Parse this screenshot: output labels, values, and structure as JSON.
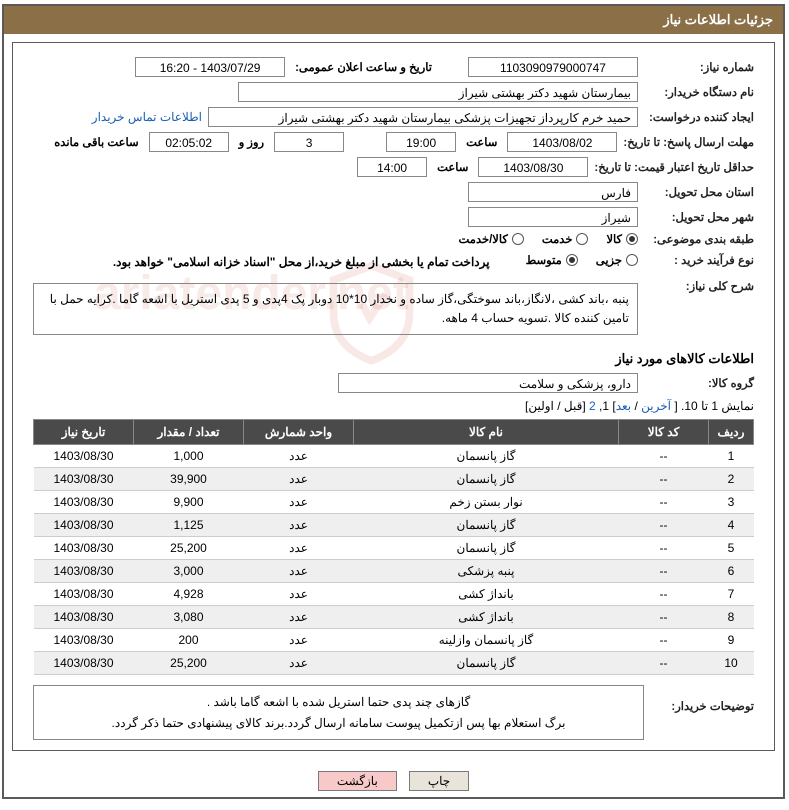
{
  "header": {
    "title": "جزئیات اطلاعات نیاز"
  },
  "form": {
    "need_number_label": "شماره نیاز:",
    "need_number": "1103090979000747",
    "announce_label": "تاریخ و ساعت اعلان عمومی:",
    "announce_value": "1403/07/29 - 16:20",
    "buyer_org_label": "نام دستگاه خریدار:",
    "buyer_org": "بیمارستان شهید دکتر بهشتی شیراز",
    "requester_label": "ایجاد کننده درخواست:",
    "requester": "حمید خرم کارپرداز تجهیزات پزشکی بیمارستان شهید دکتر بهشتی شیراز",
    "buyer_contact_link": "اطلاعات تماس خریدار",
    "deadline_send_label": "مهلت ارسال پاسخ: تا تاریخ:",
    "deadline_send_date": "1403/08/02",
    "hour_label": "ساعت",
    "deadline_send_hour": "19:00",
    "days": "3",
    "days_label": "روز و",
    "remain_time": "02:05:02",
    "remain_label": "ساعت باقی مانده",
    "price_validity_label": "حداقل تاریخ اعتبار قیمت: تا تاریخ:",
    "price_validity_date": "1403/08/30",
    "price_validity_hour": "14:00",
    "province_label": "استان محل تحویل:",
    "province": "فارس",
    "city_label": "شهر محل تحویل:",
    "city": "شیراز",
    "category_label": "طبقه بندی موضوعی:",
    "cat_goods": "کالا",
    "cat_service": "خدمت",
    "cat_both": "کالا/خدمت",
    "purchase_type_label": "نوع فرآیند خرید :",
    "pt_minor": "جزیی",
    "pt_medium": "متوسط",
    "payment_note": "پرداخت تمام یا بخشی از مبلغ خرید،از محل \"اسناد خزانه اسلامی\" خواهد بود.",
    "overall_desc_label": "شرح کلی نیاز:",
    "overall_desc": "پنبه ،باند کشی ،لانگاز،باند سوختگی،گاز ساده و نخدار 10*10 دوبار پک 4پدی و 5 پدی استریل با اشعه گاما .کرایه حمل با تامین کننده کالا .تسویه حساب 4 ماهه.",
    "items_title": "اطلاعات کالاهای مورد نیاز",
    "goods_group_label": "گروه کالا:",
    "goods_group": "دارو، پزشکی و سلامت"
  },
  "pager": {
    "text_prefix": "نمایش 1 تا 10. [ ",
    "last": "آخرین",
    "sep1": " / ",
    "next": "بعد",
    "mid": "] 1, ",
    "page2": "2",
    "suffix": " [قبل / اولین]"
  },
  "table": {
    "headers": [
      "ردیف",
      "کد کالا",
      "نام کالا",
      "واحد شمارش",
      "تعداد / مقدار",
      "تاریخ نیاز"
    ],
    "rows": [
      [
        "1",
        "--",
        "گاز پانسمان",
        "عدد",
        "1,000",
        "1403/08/30"
      ],
      [
        "2",
        "--",
        "گاز پانسمان",
        "عدد",
        "39,900",
        "1403/08/30"
      ],
      [
        "3",
        "--",
        "نوار بستن زخم",
        "عدد",
        "9,900",
        "1403/08/30"
      ],
      [
        "4",
        "--",
        "گاز پانسمان",
        "عدد",
        "1,125",
        "1403/08/30"
      ],
      [
        "5",
        "--",
        "گاز پانسمان",
        "عدد",
        "25,200",
        "1403/08/30"
      ],
      [
        "6",
        "--",
        "پنبه پزشکی",
        "عدد",
        "3,000",
        "1403/08/30"
      ],
      [
        "7",
        "--",
        "بانداژ کشی",
        "عدد",
        "4,928",
        "1403/08/30"
      ],
      [
        "8",
        "--",
        "بانداژ کشی",
        "عدد",
        "3,080",
        "1403/08/30"
      ],
      [
        "9",
        "--",
        "گاز پانسمان وازلینه",
        "عدد",
        "200",
        "1403/08/30"
      ],
      [
        "10",
        "--",
        "گاز پانسمان",
        "عدد",
        "25,200",
        "1403/08/30"
      ]
    ]
  },
  "buyer_notes": {
    "label": "توضیحات خریدار:",
    "line1": "گازهای چند پدی حتما استریل شده با اشعه گاما باشد .",
    "line2": "برگ استعلام بها پس  ازتکمیل پیوست سامانه ارسال گردد.برند کالای پیشنهادی حتما ذکر گردد."
  },
  "buttons": {
    "print": "چاپ",
    "back": "بازگشت"
  },
  "colors": {
    "header_bg": "#8b6f47",
    "frame_border": "#5a5a5a",
    "th_bg": "#4a4a4a",
    "link": "#1a5fb4",
    "btn_back_bg": "#f7c9c9"
  }
}
